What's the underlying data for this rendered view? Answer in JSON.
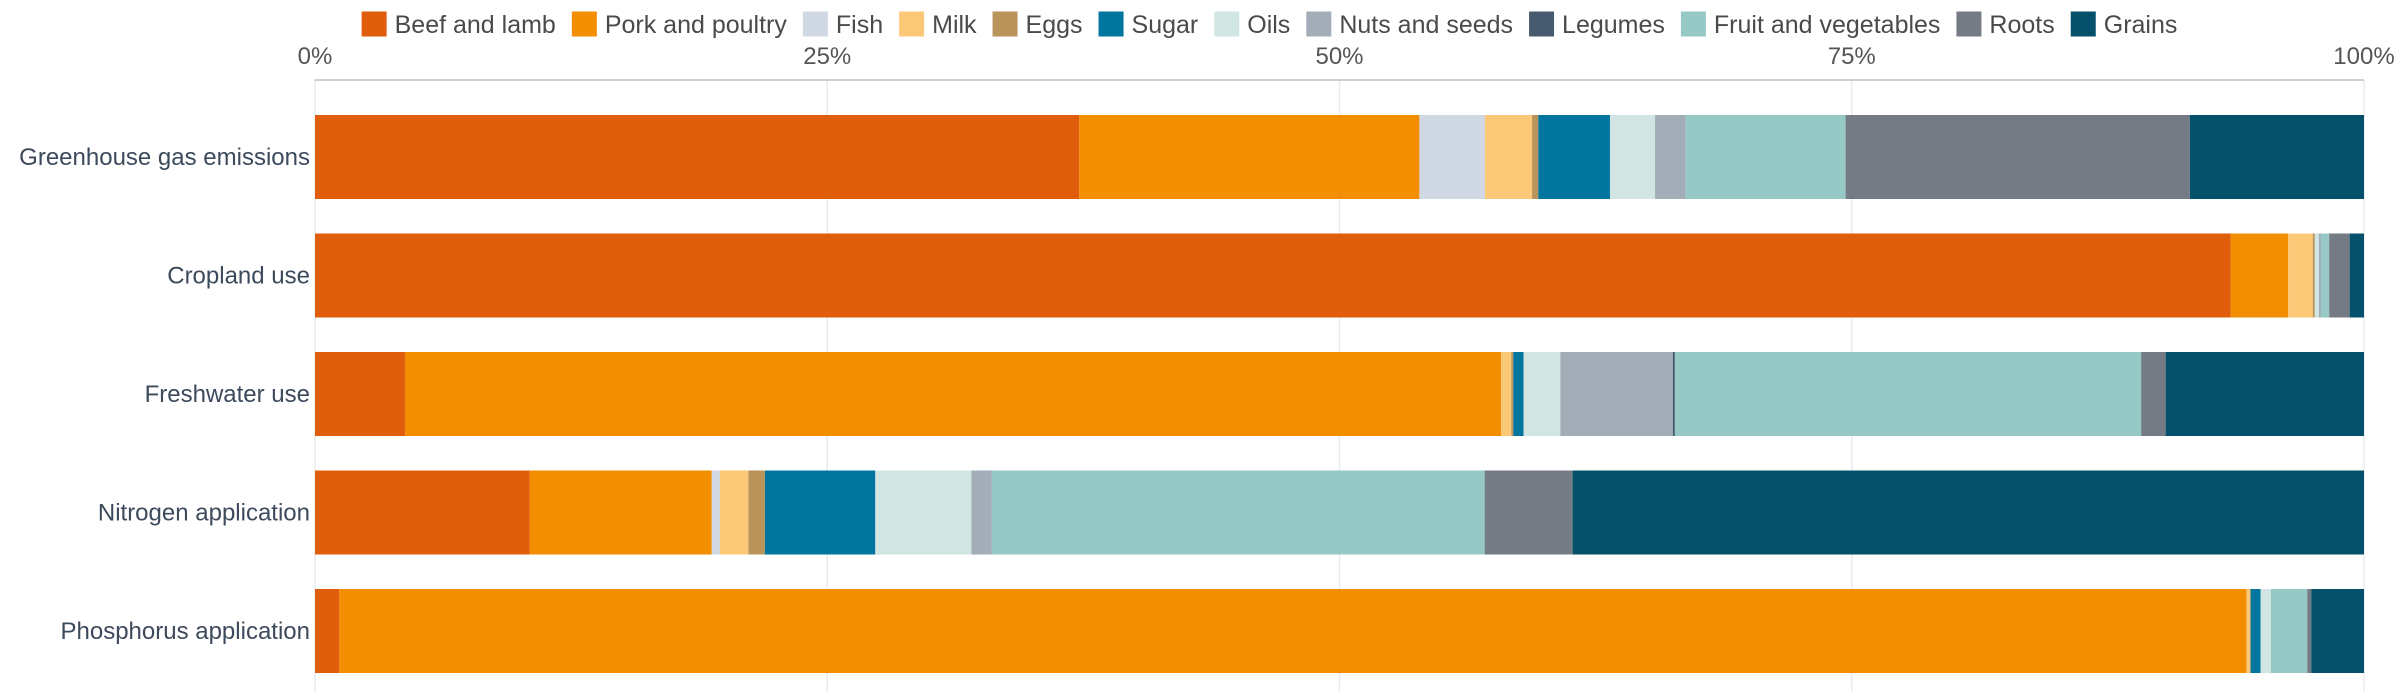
{
  "chart_data": {
    "type": "bar",
    "orientation": "horizontal",
    "stacked": true,
    "normalized": true,
    "legend_position": "top",
    "grid": true,
    "xlim": [
      0,
      100
    ],
    "x_ticks": [
      {
        "value": 0,
        "label": "0%"
      },
      {
        "value": 25,
        "label": "25%"
      },
      {
        "value": 50,
        "label": "50%"
      },
      {
        "value": 75,
        "label": "75%"
      },
      {
        "value": 100,
        "label": "100%"
      }
    ],
    "categories": [
      "Greenhouse gas emissions",
      "Cropland use",
      "Freshwater use",
      "Nitrogen application",
      "Phosphorus application"
    ],
    "series": [
      {
        "name": "Beef and lamb",
        "color": "#e05e0b",
        "values": [
          37.3,
          93.5,
          4.4,
          10.5,
          1.2
        ]
      },
      {
        "name": "Pork and poultry",
        "color": "#f28e00",
        "values": [
          16.6,
          2.8,
          53.6,
          8.9,
          94.1
        ]
      },
      {
        "name": "Fish",
        "color": "#d0d9e3",
        "values": [
          3.2,
          0.0,
          0.0,
          0.4,
          0.0
        ]
      },
      {
        "name": "Milk",
        "color": "#fbc878",
        "values": [
          2.3,
          1.2,
          0.5,
          1.4,
          0.2
        ]
      },
      {
        "name": "Eggs",
        "color": "#b8935a",
        "values": [
          0.3,
          0.1,
          0.1,
          0.8,
          0.0
        ]
      },
      {
        "name": "Sugar",
        "color": "#00759e",
        "values": [
          3.5,
          0.0,
          0.5,
          5.4,
          0.5
        ]
      },
      {
        "name": "Oils",
        "color": "#d1e6e3",
        "values": [
          2.2,
          0.2,
          1.8,
          4.7,
          0.5
        ]
      },
      {
        "name": "Nuts and seeds",
        "color": "#a2adb8",
        "values": [
          1.5,
          0.1,
          5.5,
          1.0,
          0.0
        ]
      },
      {
        "name": "Legumes",
        "color": "#465b6e",
        "values": [
          0.0,
          0.0,
          0.1,
          0.0,
          0.0
        ]
      },
      {
        "name": "Fruit and vegetables",
        "color": "#96c9c6",
        "values": [
          7.8,
          0.4,
          22.8,
          24.1,
          1.8
        ]
      },
      {
        "name": "Roots",
        "color": "#757b85",
        "values": [
          16.8,
          1.0,
          1.2,
          4.3,
          0.2
        ]
      },
      {
        "name": "Grains",
        "color": "#05506a",
        "values": [
          8.5,
          0.7,
          9.7,
          38.7,
          2.6
        ]
      }
    ]
  }
}
